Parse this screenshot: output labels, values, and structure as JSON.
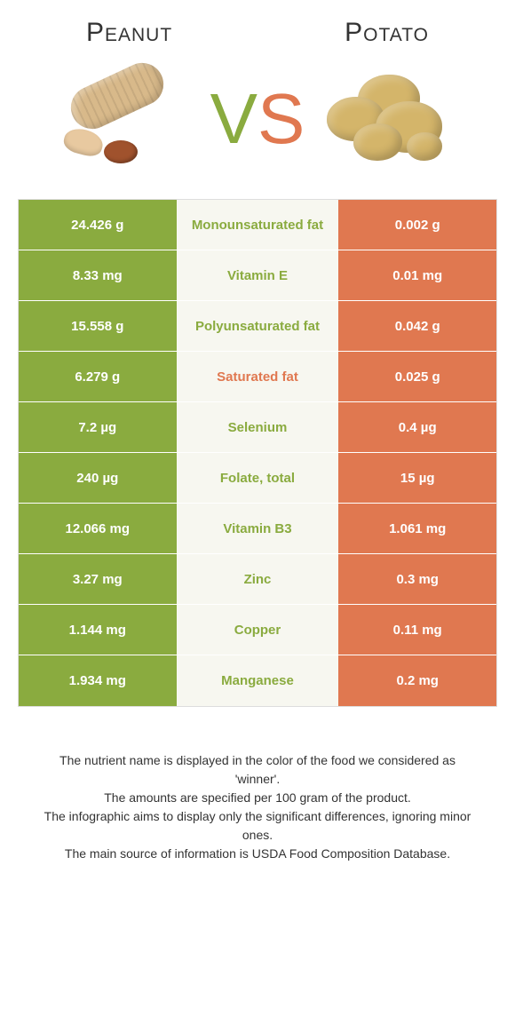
{
  "titles": {
    "left": "Peanut",
    "right": "Potato"
  },
  "vs": {
    "v": "V",
    "s": "S"
  },
  "colors": {
    "left_bg": "#8aab3f",
    "right_bg": "#e07850",
    "mid_bg": "#f7f7f0",
    "left_text": "#8aab3f",
    "right_text": "#e07850"
  },
  "rows": [
    {
      "left": "24.426 g",
      "label": "Monounsaturated fat",
      "right": "0.002 g",
      "winner": "left"
    },
    {
      "left": "8.33 mg",
      "label": "Vitamin E",
      "right": "0.01 mg",
      "winner": "left"
    },
    {
      "left": "15.558 g",
      "label": "Polyunsaturated fat",
      "right": "0.042 g",
      "winner": "left"
    },
    {
      "left": "6.279 g",
      "label": "Saturated fat",
      "right": "0.025 g",
      "winner": "right"
    },
    {
      "left": "7.2 µg",
      "label": "Selenium",
      "right": "0.4 µg",
      "winner": "left"
    },
    {
      "left": "240 µg",
      "label": "Folate, total",
      "right": "15 µg",
      "winner": "left"
    },
    {
      "left": "12.066 mg",
      "label": "Vitamin B3",
      "right": "1.061 mg",
      "winner": "left"
    },
    {
      "left": "3.27 mg",
      "label": "Zinc",
      "right": "0.3 mg",
      "winner": "left"
    },
    {
      "left": "1.144 mg",
      "label": "Copper",
      "right": "0.11 mg",
      "winner": "left"
    },
    {
      "left": "1.934 mg",
      "label": "Manganese",
      "right": "0.2 mg",
      "winner": "left"
    }
  ],
  "footer": [
    "The nutrient name is displayed in the color of the food we considered as 'winner'.",
    "The amounts are specified per 100 gram of the product.",
    "The infographic aims to display only the significant differences, ignoring minor ones.",
    "The main source of information is USDA Food Composition Database."
  ]
}
